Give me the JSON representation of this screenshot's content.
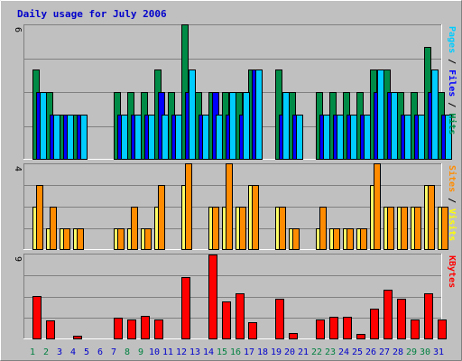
{
  "chart_data": {
    "type": "bar",
    "title": "Daily usage for July 2006",
    "categories": [
      "1",
      "2",
      "3",
      "4",
      "5",
      "6",
      "7",
      "8",
      "9",
      "10",
      "11",
      "12",
      "13",
      "14",
      "15",
      "16",
      "17",
      "18",
      "19",
      "20",
      "21",
      "22",
      "23",
      "24",
      "25",
      "26",
      "27",
      "28",
      "29",
      "30",
      "31"
    ],
    "weekend_days": [
      "1",
      "2",
      "8",
      "9",
      "15",
      "16",
      "22",
      "23",
      "29",
      "30"
    ],
    "panels": [
      {
        "id": "hits-files-pages",
        "ymax": 6,
        "ytick_label": "6",
        "legend": [
          {
            "text": "Pages",
            "color": "#00ccff"
          },
          {
            "text": " / ",
            "color": "#000000"
          },
          {
            "text": "Files",
            "color": "#0000ff"
          },
          {
            "text": " / ",
            "color": "#000000"
          },
          {
            "text": "Hits",
            "color": "#008c46"
          }
        ],
        "series": [
          {
            "key": "hits",
            "color": "#008c46",
            "values": [
              4,
              3,
              2,
              2,
              0,
              0,
              3,
              3,
              3,
              4,
              3,
              6,
              3,
              3,
              3,
              3,
              4,
              0,
              4,
              3,
              0,
              3,
              3,
              3,
              3,
              4,
              4,
              3,
              3,
              5,
              3
            ]
          },
          {
            "key": "files",
            "color": "#0000ff",
            "values": [
              3,
              2,
              2,
              2,
              0,
              0,
              2,
              2,
              2,
              3,
              2,
              3,
              2,
              3,
              2,
              2,
              4,
              0,
              2,
              2,
              0,
              2,
              2,
              2,
              2,
              3,
              3,
              2,
              2,
              3,
              2
            ]
          },
          {
            "key": "pages",
            "color": "#00ccff",
            "values": [
              3,
              2,
              2,
              2,
              0,
              0,
              2,
              2,
              2,
              2,
              2,
              4,
              2,
              2,
              3,
              3,
              4,
              0,
              3,
              2,
              0,
              2,
              2,
              2,
              2,
              4,
              3,
              2,
              2,
              4,
              2
            ]
          }
        ]
      },
      {
        "id": "visits-sites",
        "ymax": 4,
        "ytick_label": "4",
        "legend": [
          {
            "text": "Sites",
            "color": "#ff8c00"
          },
          {
            "text": " / ",
            "color": "#000000"
          },
          {
            "text": "Visits",
            "color": "#ffff00"
          }
        ],
        "series": [
          {
            "key": "visits",
            "color": "#ffff66",
            "values": [
              2,
              1,
              1,
              1,
              0,
              0,
              1,
              1,
              1,
              2,
              0,
              3,
              0,
              2,
              2,
              2,
              3,
              0,
              2,
              1,
              0,
              1,
              1,
              1,
              1,
              3,
              2,
              2,
              2,
              3,
              2
            ]
          },
          {
            "key": "sites",
            "color": "#ff8c00",
            "values": [
              3,
              2,
              1,
              1,
              0,
              0,
              1,
              2,
              1,
              3,
              0,
              4,
              0,
              2,
              4,
              2,
              3,
              0,
              2,
              1,
              0,
              2,
              1,
              1,
              1,
              4,
              2,
              2,
              2,
              3,
              2
            ]
          }
        ]
      },
      {
        "id": "kbytes",
        "ymax": 9,
        "ytick_label": "9",
        "legend": [
          {
            "text": "KBytes",
            "color": "#ff0000"
          }
        ],
        "series": [
          {
            "key": "kbytes",
            "color": "#ff0000",
            "values": [
              4.5,
              2,
              0,
              0.4,
              0,
              0,
              2.3,
              2.1,
              2.5,
              2.1,
              0,
              6.5,
              0,
              8.9,
              4,
              4.8,
              1.8,
              0,
              4.3,
              0.7,
              0,
              2.1,
              2.4,
              2.4,
              0.6,
              3.2,
              5.2,
              4.3,
              2.1,
              4.8,
              2.1
            ]
          }
        ]
      }
    ]
  },
  "colors": {
    "background": "#c0c0c0",
    "weekday_label": "#0000cc",
    "weekend_label": "#008040"
  }
}
